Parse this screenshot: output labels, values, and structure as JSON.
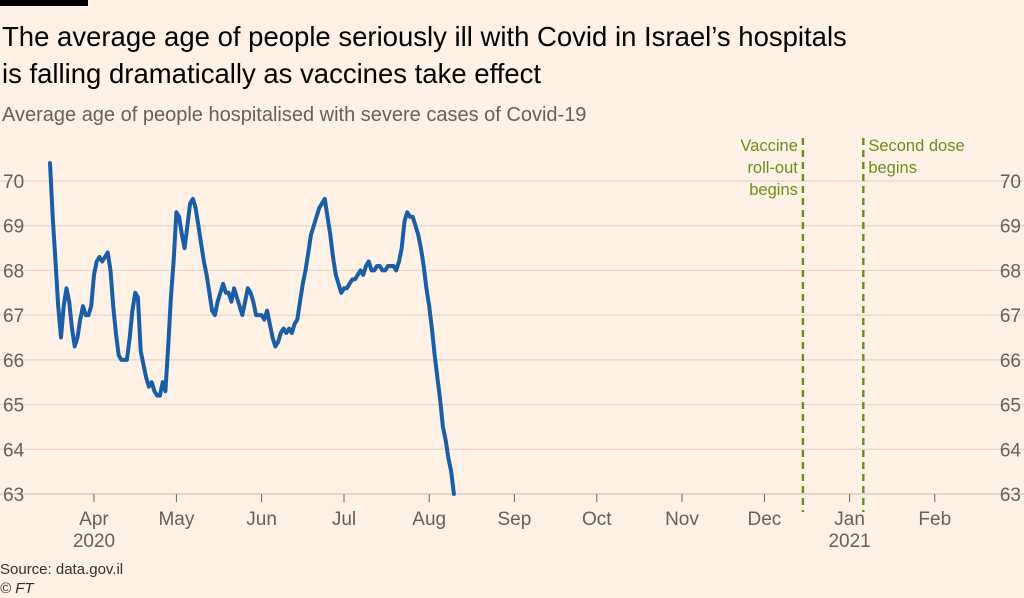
{
  "header": {
    "title_line1": "The average age of people seriously ill with Covid in Israel’s hospitals",
    "title_line2": "is falling dramatically as vaccines take effect",
    "subtitle": "Average age of people hospitalised with severe cases of Covid-19"
  },
  "footer": {
    "source": "Source: data.gov.il",
    "copyright": "© FT"
  },
  "colors": {
    "background": "#fff1e5",
    "line": "#1a5ea8",
    "annotation": "#6a8e1e",
    "grid": "#e3d6cb"
  },
  "chart_data": {
    "type": "line",
    "title": "The average age of people seriously ill with Covid in Israel’s hospitals is falling dramatically as vaccines take effect",
    "subtitle": "Average age of people hospitalised with severe cases of Covid-19",
    "xlabel": "",
    "ylabel": "",
    "x_range_days": [
      0,
      333
    ],
    "ylim": [
      63,
      70.5
    ],
    "y_ticks": [
      63,
      64,
      65,
      66,
      67,
      68,
      69,
      70
    ],
    "x_ticks": [
      {
        "label": "Apr",
        "sublabel": "2020",
        "day": 16
      },
      {
        "label": "May",
        "sublabel": "",
        "day": 46
      },
      {
        "label": "Jun",
        "sublabel": "",
        "day": 77
      },
      {
        "label": "Jul",
        "sublabel": "",
        "day": 107
      },
      {
        "label": "Aug",
        "sublabel": "",
        "day": 138
      },
      {
        "label": "Sep",
        "sublabel": "",
        "day": 169
      },
      {
        "label": "Oct",
        "sublabel": "",
        "day": 199
      },
      {
        "label": "Nov",
        "sublabel": "",
        "day": 230
      },
      {
        "label": "Dec",
        "sublabel": "",
        "day": 260
      },
      {
        "label": "Jan",
        "sublabel": "2021",
        "day": 291
      },
      {
        "label": "Feb",
        "sublabel": "",
        "day": 322
      }
    ],
    "annotations": [
      {
        "day": 274,
        "lines": [
          "Vaccine",
          "roll-out",
          "begins"
        ],
        "anchor": "end"
      },
      {
        "day": 296,
        "lines": [
          "Second dose",
          "begins"
        ],
        "anchor": "start"
      }
    ],
    "series": [
      {
        "name": "Average age",
        "points": [
          [
            0,
            70.4
          ],
          [
            1,
            69.2
          ],
          [
            2,
            68.2
          ],
          [
            3,
            67.2
          ],
          [
            4,
            66.5
          ],
          [
            5,
            67.2
          ],
          [
            6,
            67.6
          ],
          [
            7,
            67.3
          ],
          [
            8,
            66.7
          ],
          [
            9,
            66.3
          ],
          [
            10,
            66.5
          ],
          [
            11,
            66.9
          ],
          [
            12,
            67.2
          ],
          [
            13,
            67.0
          ],
          [
            14,
            67.0
          ],
          [
            15,
            67.2
          ],
          [
            16,
            67.9
          ],
          [
            17,
            68.2
          ],
          [
            18,
            68.3
          ],
          [
            19,
            68.2
          ],
          [
            20,
            68.3
          ],
          [
            21,
            68.4
          ],
          [
            22,
            68.0
          ],
          [
            23,
            67.2
          ],
          [
            24,
            66.6
          ],
          [
            25,
            66.1
          ],
          [
            26,
            66.0
          ],
          [
            27,
            66.0
          ],
          [
            28,
            66.0
          ],
          [
            29,
            66.5
          ],
          [
            30,
            67.1
          ],
          [
            31,
            67.5
          ],
          [
            32,
            67.4
          ],
          [
            33,
            66.2
          ],
          [
            34,
            65.9
          ],
          [
            35,
            65.6
          ],
          [
            36,
            65.4
          ],
          [
            37,
            65.5
          ],
          [
            38,
            65.3
          ],
          [
            39,
            65.2
          ],
          [
            40,
            65.2
          ],
          [
            41,
            65.5
          ],
          [
            42,
            65.3
          ],
          [
            43,
            66.3
          ],
          [
            44,
            67.4
          ],
          [
            45,
            68.2
          ],
          [
            46,
            69.3
          ],
          [
            47,
            69.2
          ],
          [
            48,
            68.8
          ],
          [
            49,
            68.5
          ],
          [
            50,
            69.0
          ],
          [
            51,
            69.5
          ],
          [
            52,
            69.6
          ],
          [
            53,
            69.4
          ],
          [
            54,
            69.0
          ],
          [
            55,
            68.6
          ],
          [
            56,
            68.2
          ],
          [
            57,
            67.9
          ],
          [
            58,
            67.5
          ],
          [
            59,
            67.1
          ],
          [
            60,
            67.0
          ],
          [
            61,
            67.3
          ],
          [
            62,
            67.5
          ],
          [
            63,
            67.7
          ],
          [
            64,
            67.5
          ],
          [
            65,
            67.5
          ],
          [
            66,
            67.3
          ],
          [
            67,
            67.6
          ],
          [
            68,
            67.4
          ],
          [
            69,
            67.2
          ],
          [
            70,
            67.0
          ],
          [
            71,
            67.3
          ],
          [
            72,
            67.6
          ],
          [
            73,
            67.5
          ],
          [
            74,
            67.3
          ],
          [
            75,
            67.0
          ],
          [
            76,
            67.0
          ],
          [
            77,
            67.0
          ],
          [
            78,
            66.9
          ],
          [
            79,
            67.1
          ],
          [
            80,
            66.8
          ],
          [
            81,
            66.5
          ],
          [
            82,
            66.3
          ],
          [
            83,
            66.4
          ],
          [
            84,
            66.6
          ],
          [
            85,
            66.7
          ],
          [
            86,
            66.6
          ],
          [
            87,
            66.7
          ],
          [
            88,
            66.6
          ],
          [
            89,
            66.8
          ],
          [
            90,
            66.9
          ],
          [
            91,
            67.3
          ],
          [
            92,
            67.7
          ],
          [
            93,
            68.0
          ],
          [
            94,
            68.4
          ],
          [
            95,
            68.8
          ],
          [
            96,
            69.0
          ],
          [
            97,
            69.2
          ],
          [
            98,
            69.4
          ],
          [
            99,
            69.5
          ],
          [
            100,
            69.6
          ],
          [
            101,
            69.2
          ],
          [
            102,
            68.8
          ],
          [
            103,
            68.3
          ],
          [
            104,
            67.9
          ],
          [
            105,
            67.7
          ],
          [
            106,
            67.5
          ],
          [
            107,
            67.6
          ],
          [
            108,
            67.6
          ],
          [
            109,
            67.7
          ],
          [
            110,
            67.8
          ],
          [
            111,
            67.8
          ],
          [
            112,
            67.9
          ],
          [
            113,
            68.0
          ],
          [
            114,
            67.9
          ],
          [
            115,
            68.1
          ],
          [
            116,
            68.2
          ],
          [
            117,
            68.0
          ],
          [
            118,
            68.0
          ],
          [
            119,
            68.1
          ],
          [
            120,
            68.1
          ],
          [
            121,
            68.0
          ],
          [
            122,
            68.0
          ],
          [
            123,
            68.1
          ],
          [
            124,
            68.1
          ],
          [
            125,
            68.1
          ],
          [
            126,
            68.0
          ],
          [
            127,
            68.2
          ],
          [
            128,
            68.5
          ],
          [
            129,
            69.1
          ],
          [
            130,
            69.3
          ],
          [
            131,
            69.2
          ],
          [
            132,
            69.2
          ],
          [
            133,
            69.0
          ],
          [
            134,
            68.8
          ],
          [
            135,
            68.5
          ],
          [
            136,
            68.1
          ],
          [
            137,
            67.6
          ],
          [
            138,
            67.2
          ],
          [
            139,
            66.7
          ],
          [
            140,
            66.1
          ],
          [
            141,
            65.6
          ],
          [
            142,
            65.1
          ],
          [
            143,
            64.5
          ],
          [
            144,
            64.2
          ],
          [
            145,
            63.8
          ],
          [
            146,
            63.5
          ],
          [
            147,
            63.0
          ]
        ]
      }
    ]
  }
}
